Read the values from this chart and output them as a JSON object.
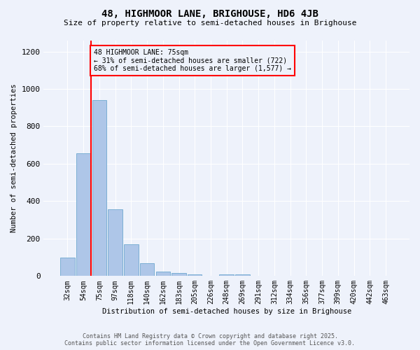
{
  "title": "48, HIGHMOOR LANE, BRIGHOUSE, HD6 4JB",
  "subtitle": "Size of property relative to semi-detached houses in Brighouse",
  "xlabel": "Distribution of semi-detached houses by size in Brighouse",
  "ylabel": "Number of semi-detached properties",
  "bin_labels": [
    "32sqm",
    "54sqm",
    "75sqm",
    "97sqm",
    "118sqm",
    "140sqm",
    "162sqm",
    "183sqm",
    "205sqm",
    "226sqm",
    "248sqm",
    "269sqm",
    "291sqm",
    "312sqm",
    "334sqm",
    "356sqm",
    "377sqm",
    "399sqm",
    "420sqm",
    "442sqm",
    "463sqm"
  ],
  "bin_values": [
    100,
    655,
    940,
    355,
    170,
    70,
    25,
    15,
    10,
    0,
    10,
    10,
    0,
    0,
    0,
    0,
    0,
    0,
    0,
    0,
    0
  ],
  "bar_color": "#aec6e8",
  "bar_edge_color": "#7bafd4",
  "vline_index": 2,
  "vline_color": "red",
  "annotation_text": "48 HIGHMOOR LANE: 75sqm\n← 31% of semi-detached houses are smaller (722)\n68% of semi-detached houses are larger (1,577) →",
  "annotation_box_color": "red",
  "background_color": "#eef2fb",
  "grid_color": "white",
  "ylim": [
    0,
    1260
  ],
  "yticks": [
    0,
    200,
    400,
    600,
    800,
    1000,
    1200
  ],
  "footer_line1": "Contains HM Land Registry data © Crown copyright and database right 2025.",
  "footer_line2": "Contains public sector information licensed under the Open Government Licence v3.0."
}
